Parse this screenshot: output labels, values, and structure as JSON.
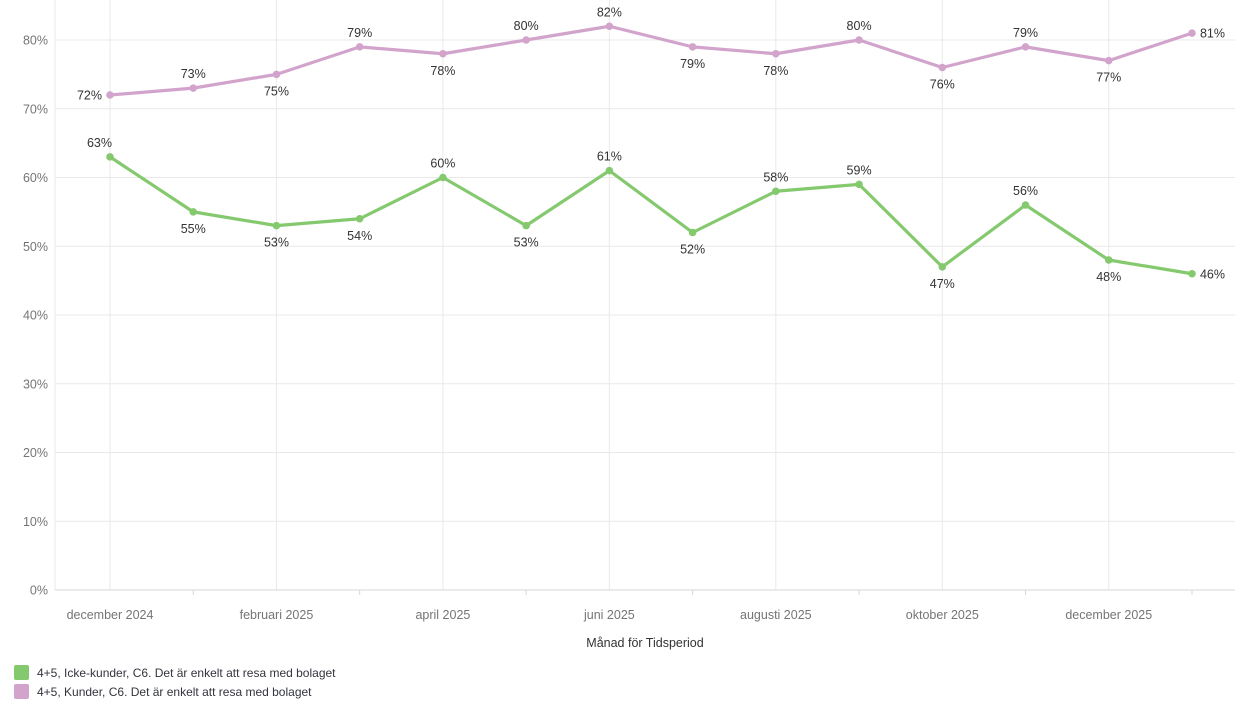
{
  "chart_data": {
    "type": "line",
    "title": "",
    "x_axis": {
      "title": "Månad för Tidsperiod",
      "tick_labels": [
        "december 2024",
        "februari 2025",
        "april 2025",
        "juni 2025",
        "augusti 2025",
        "oktober 2025",
        "december 2025"
      ],
      "tick_point_indices": [
        0,
        2,
        4,
        6,
        8,
        10,
        12
      ],
      "point_count": 14
    },
    "y_axis": {
      "tick_labels": [
        "0%",
        "10%",
        "20%",
        "30%",
        "40%",
        "50%",
        "60%",
        "70%",
        "80%"
      ],
      "min": 0,
      "max": 80,
      "step": 10,
      "unit": "%"
    },
    "grid": true,
    "legend_position": "bottom-left",
    "series": [
      {
        "name": "4+5, Icke-kunder, C6. Det är enkelt att resa med bolaget",
        "color": "#85c96f",
        "values": [
          63,
          55,
          53,
          54,
          60,
          53,
          61,
          52,
          58,
          59,
          47,
          56,
          48,
          46
        ],
        "label_placement": [
          "above-left",
          "below",
          "below",
          "below",
          "above",
          "below",
          "above",
          "below",
          "above",
          "above",
          "below",
          "above",
          "below",
          "right"
        ]
      },
      {
        "name": "4+5, Kunder, C6. Det är enkelt att resa med bolaget",
        "color": "#d2a4cc",
        "values": [
          72,
          73,
          75,
          79,
          78,
          80,
          82,
          79,
          78,
          80,
          76,
          79,
          77,
          81
        ],
        "label_placement": [
          "left",
          "above",
          "below",
          "above",
          "below",
          "above",
          "above",
          "below",
          "below",
          "above",
          "below",
          "above",
          "below",
          "right"
        ]
      }
    ],
    "colors": {
      "background": "#ffffff",
      "grid_line": "#e9e9e9",
      "axis_line": "#d7d7d7",
      "tick_label": "#757575",
      "axis_title": "#333333",
      "data_label": "#333333",
      "legend_text": "#33343d"
    }
  }
}
